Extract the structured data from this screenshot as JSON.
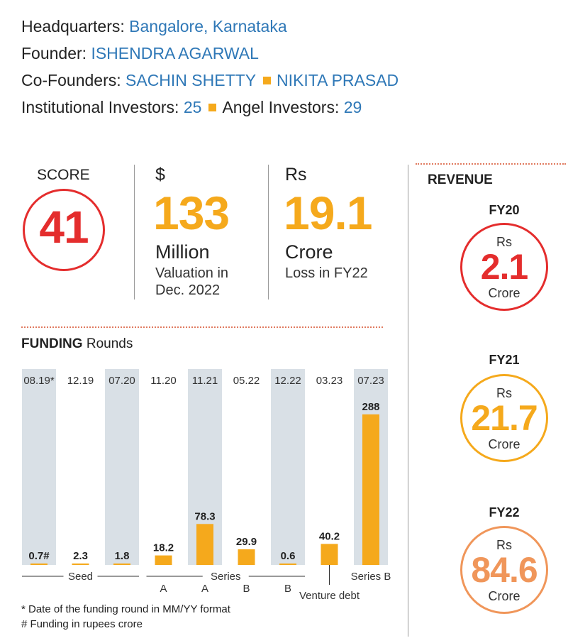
{
  "info": {
    "hq_label": "Headquarters:",
    "hq_value": "Bangalore, Karnataka",
    "founder_label": "Founder:",
    "founder_value": "ISHENDRA AGARWAL",
    "cofounders_label": "Co-Founders:",
    "cofounder1": "SACHIN SHETTY",
    "cofounder2": "NIKITA PRASAD",
    "inst_label": "Institutional Investors:",
    "inst_value": "25",
    "angel_label": "Angel Investors:",
    "angel_value": "29"
  },
  "score": {
    "label": "SCORE",
    "value": "41"
  },
  "valuation": {
    "currency": "$",
    "value": "133",
    "unit": "Million",
    "caption_line1": "Valuation in",
    "caption_line2": "Dec. 2022"
  },
  "loss": {
    "currency": "Rs",
    "value": "19.1",
    "unit": "Crore",
    "caption": "Loss in FY22"
  },
  "revenue": {
    "title": "REVENUE",
    "items": [
      {
        "year": "FY20",
        "currency": "Rs",
        "value": "2.1",
        "unit": "Crore",
        "color": "#e42d2d"
      },
      {
        "year": "FY21",
        "currency": "Rs",
        "value": "21.7",
        "unit": "Crore",
        "color": "#f5a91c"
      },
      {
        "year": "FY22",
        "currency": "Rs",
        "value": "84.6",
        "unit": "Crore",
        "color": "#f0965a"
      }
    ]
  },
  "funding": {
    "title_bold": "FUNDING",
    "title_rest": " Rounds"
  },
  "colors": {
    "bar": "#f5a91c",
    "shade": "#d9e0e6",
    "accent_text": "#2f78b7"
  },
  "chart_data": {
    "type": "bar",
    "categories": [
      "08.19*",
      "12.19",
      "07.20",
      "11.20",
      "11.21",
      "05.22",
      "12.22",
      "03.23",
      "07.23"
    ],
    "values": [
      0.7,
      2.3,
      1.8,
      18.2,
      78.3,
      29.9,
      0.6,
      40.2,
      288
    ],
    "value_labels": [
      "0.7#",
      "2.3",
      "1.8",
      "18.2",
      "78.3",
      "29.9",
      "0.6",
      "40.2",
      "288"
    ],
    "shaded": [
      true,
      false,
      true,
      false,
      true,
      false,
      true,
      false,
      true
    ],
    "round_sublabels": [
      "",
      "",
      "",
      "A",
      "A",
      "B",
      "B",
      "",
      ""
    ],
    "groups": [
      {
        "label": "Seed",
        "from": 0,
        "to": 2
      },
      {
        "label": "Series",
        "from": 3,
        "to": 6
      },
      {
        "label": "Venture debt",
        "from": 7,
        "to": 7
      },
      {
        "label": "Series B",
        "from": 8,
        "to": 8
      }
    ],
    "ylim": [
      0,
      300
    ],
    "footnotes": [
      "* Date of the funding round in MM/YY format",
      "# Funding in rupees crore"
    ]
  }
}
